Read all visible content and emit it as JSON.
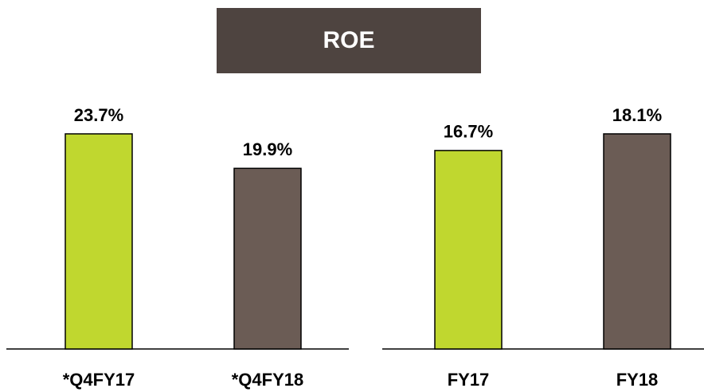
{
  "title": "ROE",
  "chart_data": [
    {
      "type": "bar",
      "categories": [
        "*Q4FY17",
        "*Q4FY18"
      ],
      "values": [
        23.7,
        19.9
      ],
      "value_labels": [
        "23.7%",
        "19.9%"
      ],
      "colors": [
        "#c0d72f",
        "#6b5c55"
      ]
    },
    {
      "type": "bar",
      "categories": [
        "FY17",
        "FY18"
      ],
      "values": [
        16.7,
        18.1
      ],
      "value_labels": [
        "16.7%",
        "18.1%"
      ],
      "colors": [
        "#c0d72f",
        "#6b5c55"
      ]
    }
  ]
}
